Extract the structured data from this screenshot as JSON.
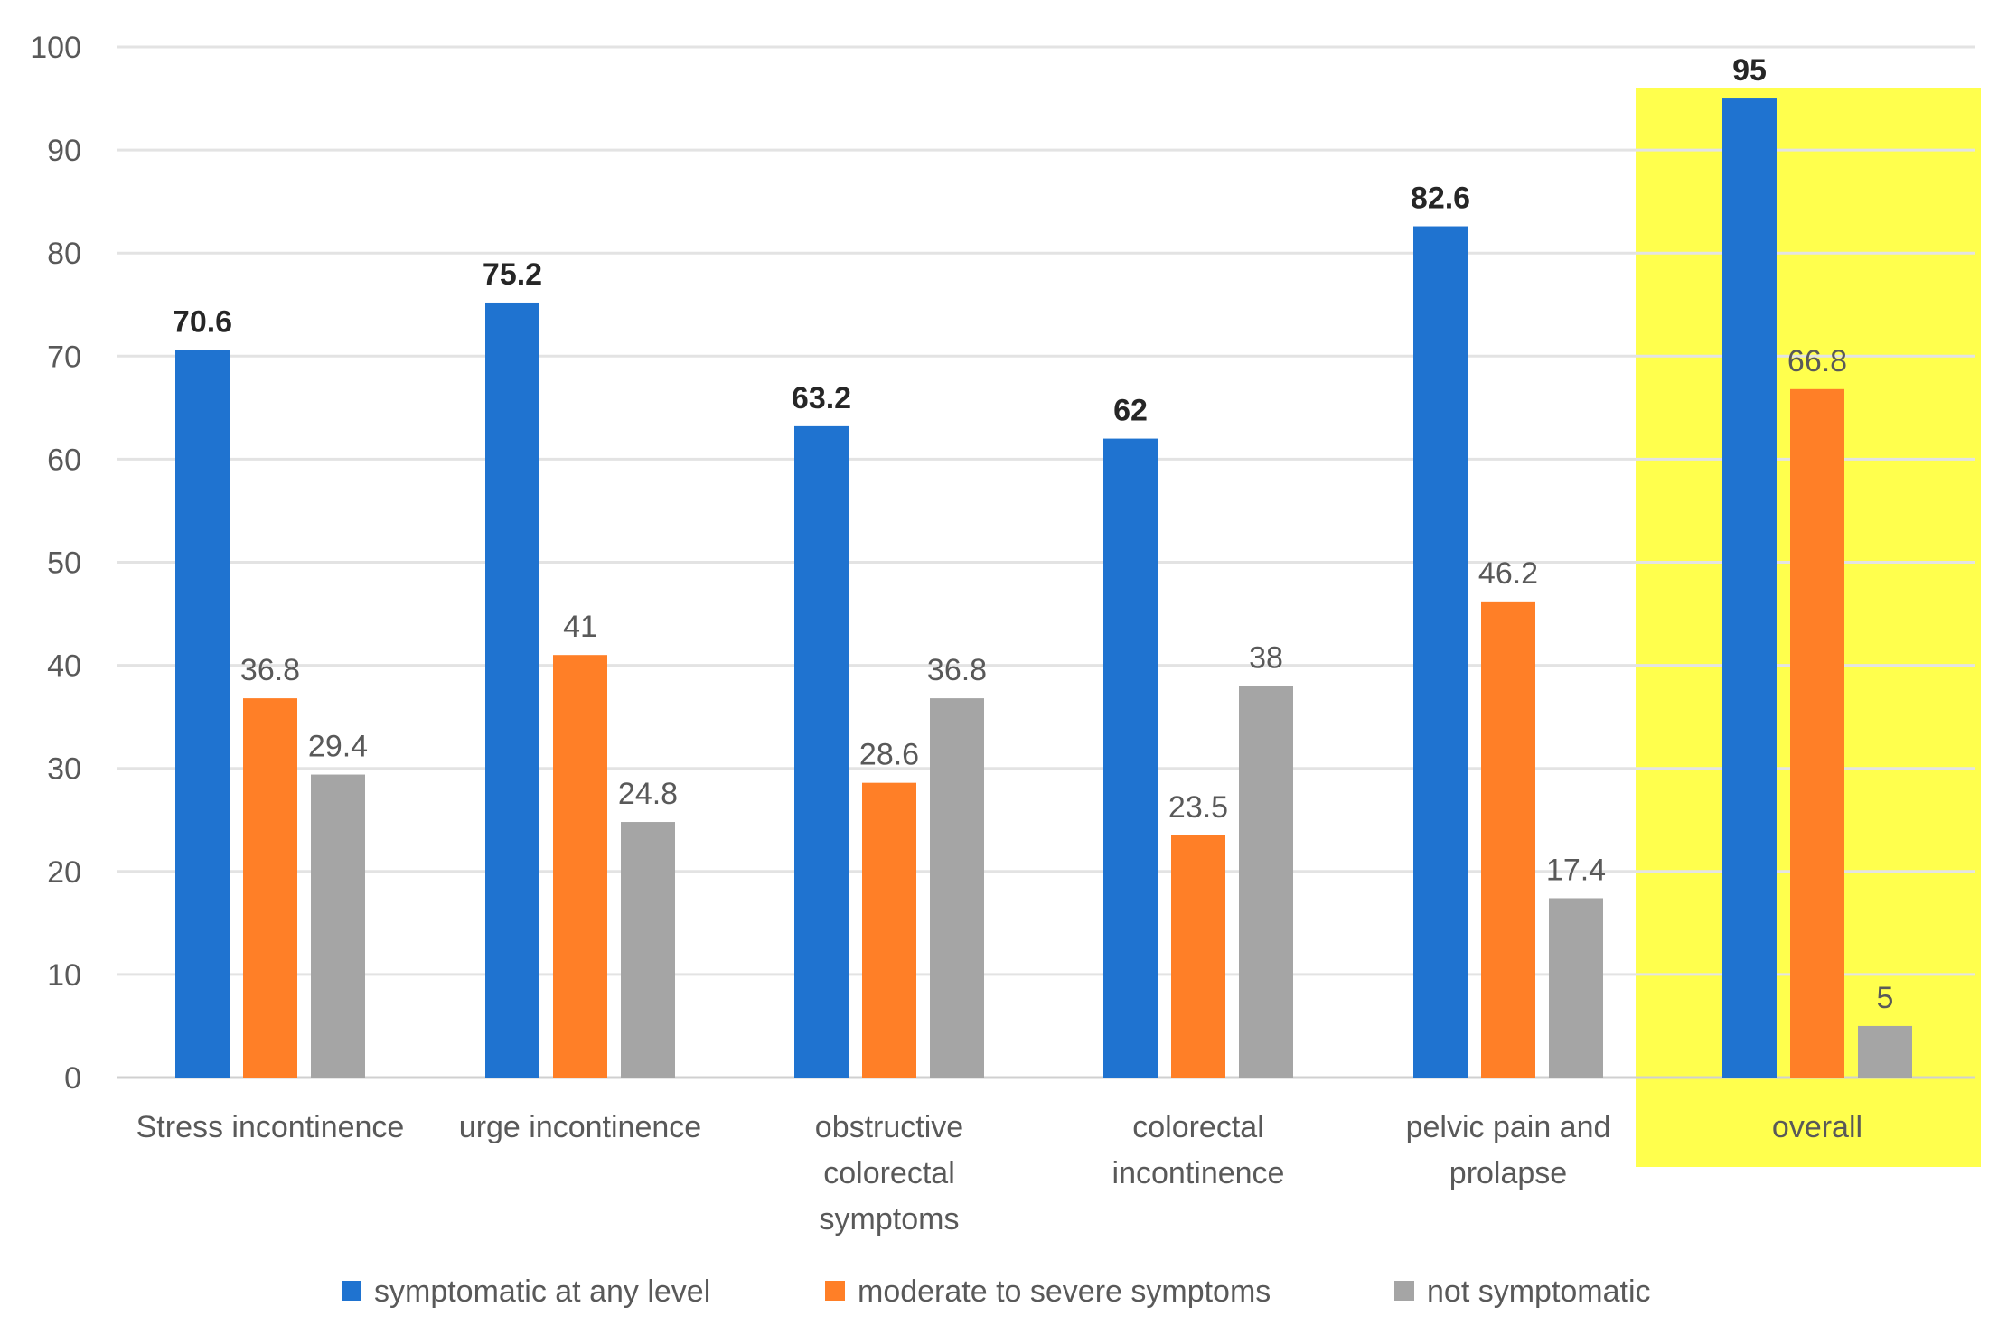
{
  "chart_data": {
    "type": "bar",
    "title": "",
    "xlabel": "",
    "ylabel": "",
    "ylim": [
      0,
      100
    ],
    "yticks": [
      0,
      10,
      20,
      30,
      40,
      50,
      60,
      70,
      80,
      90,
      100
    ],
    "grid": true,
    "legend_position": "bottom",
    "highlighted_category": "overall",
    "highlight_color": "#FFFF4D",
    "categories": [
      [
        "Stress incontinence"
      ],
      [
        "urge incontinence"
      ],
      [
        "obstructive",
        "colorectal",
        "symptoms"
      ],
      [
        "colorectal",
        "incontinence"
      ],
      [
        "pelvic pain and",
        "prolapse"
      ],
      [
        "overall"
      ]
    ],
    "series": [
      {
        "name": "symptomatic at any level",
        "color": "#1F73D0",
        "label_bold": true,
        "values": [
          70.6,
          75.2,
          63.2,
          62,
          82.6,
          95
        ],
        "labels": [
          "70.6",
          "75.2",
          "63.2",
          "62",
          "82.6",
          "95"
        ]
      },
      {
        "name": "moderate to severe symptoms",
        "color": "#FF7F27",
        "label_bold": false,
        "values": [
          36.8,
          41,
          28.6,
          23.5,
          46.2,
          66.8
        ],
        "labels": [
          "36.8",
          "41",
          "28.6",
          "23.5",
          "46.2",
          "66.8"
        ]
      },
      {
        "name": "not symptomatic",
        "color": "#A5A5A5",
        "label_bold": false,
        "values": [
          29.4,
          24.8,
          36.8,
          38,
          17.4,
          5
        ],
        "labels": [
          "29.4",
          "24.8",
          "36.8",
          "38",
          "17.4",
          "5"
        ]
      }
    ]
  }
}
